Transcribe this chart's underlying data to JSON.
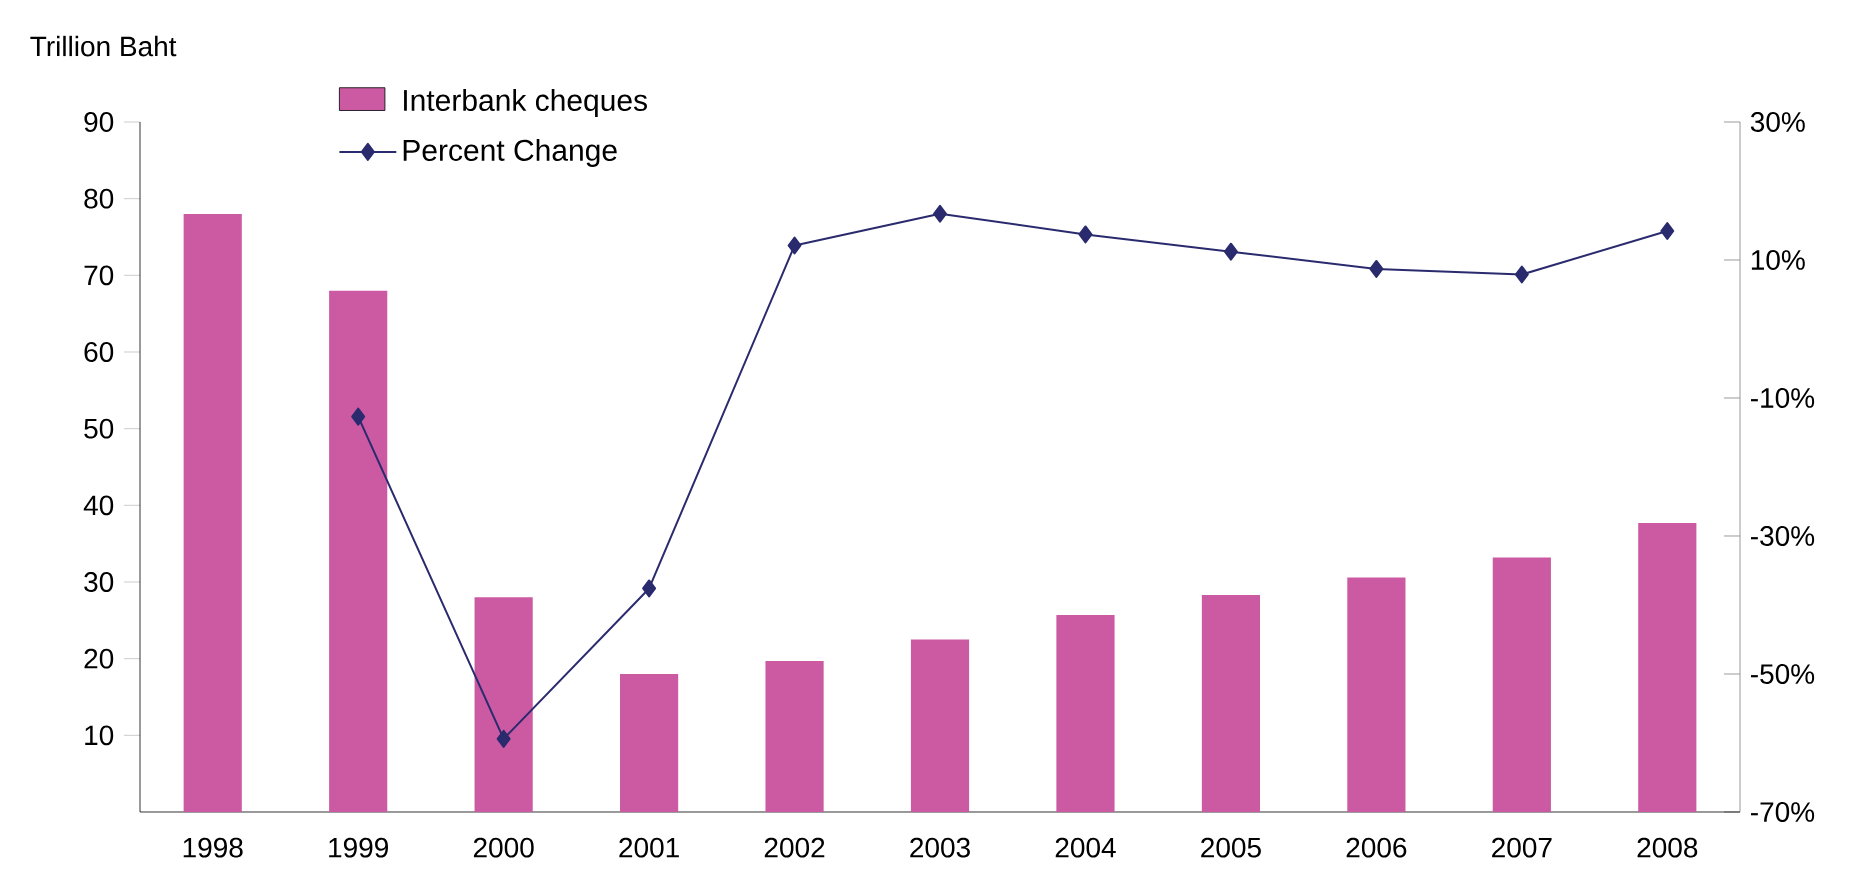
{
  "chart_data": {
    "type": "bar",
    "categories": [
      "1998",
      "1999",
      "2000",
      "2001",
      "2002",
      "2003",
      "2004",
      "2005",
      "2006",
      "2007",
      "2008"
    ],
    "ylabel": "Trillion Baht",
    "series": [
      {
        "name": "Interbank cheques",
        "color": "#cc5aa3",
        "values": [
          78,
          68,
          28,
          18,
          19.7,
          22.5,
          25.7,
          28.3,
          30.6,
          33.2,
          37.7
        ]
      },
      {
        "name": "Percent Change",
        "type": "line",
        "axis": "y2",
        "color": "#2a2a6e",
        "marker": "diamond",
        "values": [
          null,
          -12.7,
          -59.4,
          -37.6,
          12.1,
          16.7,
          13.7,
          11.2,
          8.7,
          7.9,
          14.2
        ]
      }
    ],
    "ylim": [
      0,
      90
    ],
    "yticks": [
      10,
      20,
      30,
      40,
      50,
      60,
      70,
      80,
      90
    ],
    "y2lim": [
      -70,
      30
    ],
    "y2ticks": [
      {
        "value": 30,
        "label": "30%"
      },
      {
        "value": 10,
        "label": "10%"
      },
      {
        "value": -10,
        "label": "-10%"
      },
      {
        "value": -30,
        "label": "-30%"
      },
      {
        "value": -50,
        "label": "-50%"
      },
      {
        "value": -70,
        "label": "-70%"
      }
    ],
    "legend": "top left",
    "grid": false
  }
}
